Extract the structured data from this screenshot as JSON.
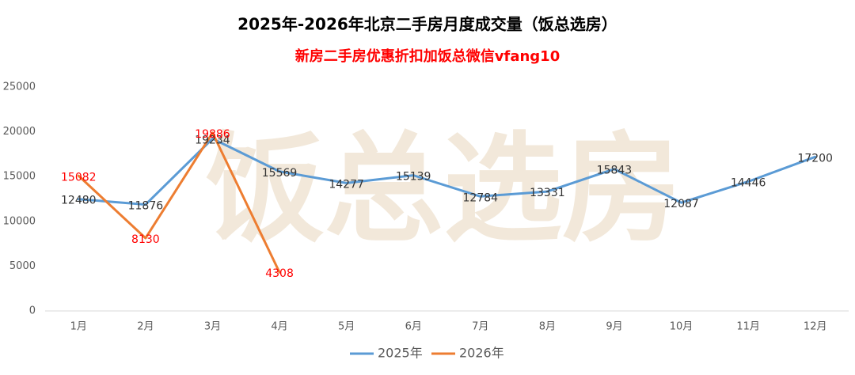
{
  "chart_data": {
    "type": "line",
    "title": "2025年-2026年北京二手房月度成交量（饭总选房）",
    "subtitle": "新房二手房优惠折扣加饭总微信vfang10",
    "watermark": "饭总选房",
    "categories": [
      "1月",
      "2月",
      "3月",
      "4月",
      "5月",
      "6月",
      "7月",
      "8月",
      "9月",
      "10月",
      "11月",
      "12月"
    ],
    "series": [
      {
        "name": "2025年",
        "color": "#5b9bd5",
        "label_color": "#333333",
        "values": [
          12480,
          11876,
          19234,
          15569,
          14277,
          15139,
          12784,
          13331,
          15843,
          12087,
          14446,
          17200
        ]
      },
      {
        "name": "2026年",
        "color": "#ed7d31",
        "label_color": "#ff0000",
        "values": [
          15082,
          8130,
          19886,
          4308,
          null,
          null,
          null,
          null,
          null,
          null,
          null,
          null
        ]
      }
    ],
    "ylim": [
      0,
      25000
    ],
    "yticks": [
      0,
      5000,
      10000,
      15000,
      20000,
      25000
    ],
    "grid": false,
    "legend": "bottom"
  }
}
